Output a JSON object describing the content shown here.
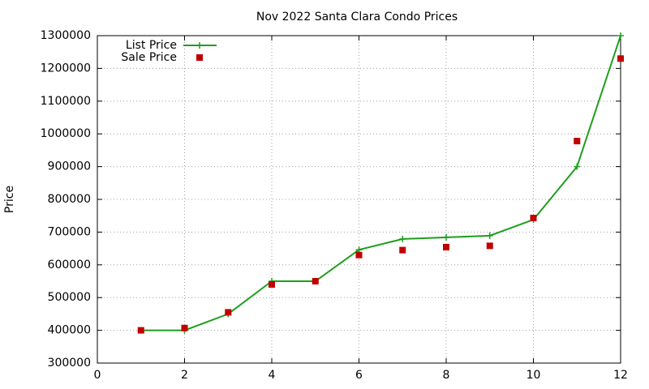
{
  "chart_data": {
    "type": "line",
    "title": "Nov 2022 Santa Clara Condo Prices",
    "ylabel": "Price",
    "x": [
      1,
      2,
      3,
      4,
      5,
      6,
      7,
      8,
      9,
      10,
      11,
      12
    ],
    "series": [
      {
        "name": "List Price",
        "color": "#1e9e1e",
        "style": "line-plus",
        "values": [
          400000,
          400000,
          450000,
          550000,
          550000,
          646000,
          679000,
          684000,
          689000,
          738000,
          900000,
          1300000
        ]
      },
      {
        "name": "Sale Price",
        "color": "#c00000",
        "style": "square",
        "values": [
          400000,
          407000,
          455000,
          540000,
          550000,
          630000,
          645000,
          654000,
          658000,
          743000,
          978000,
          1230000
        ]
      }
    ],
    "xlim": [
      0,
      12
    ],
    "xticks": [
      0,
      2,
      4,
      6,
      8,
      10,
      12
    ],
    "ylim": [
      300000,
      1300000
    ],
    "yticks": [
      300000,
      400000,
      500000,
      600000,
      700000,
      800000,
      900000,
      1000000,
      1100000,
      1200000,
      1300000
    ],
    "grid": true,
    "legend": "top-left"
  }
}
